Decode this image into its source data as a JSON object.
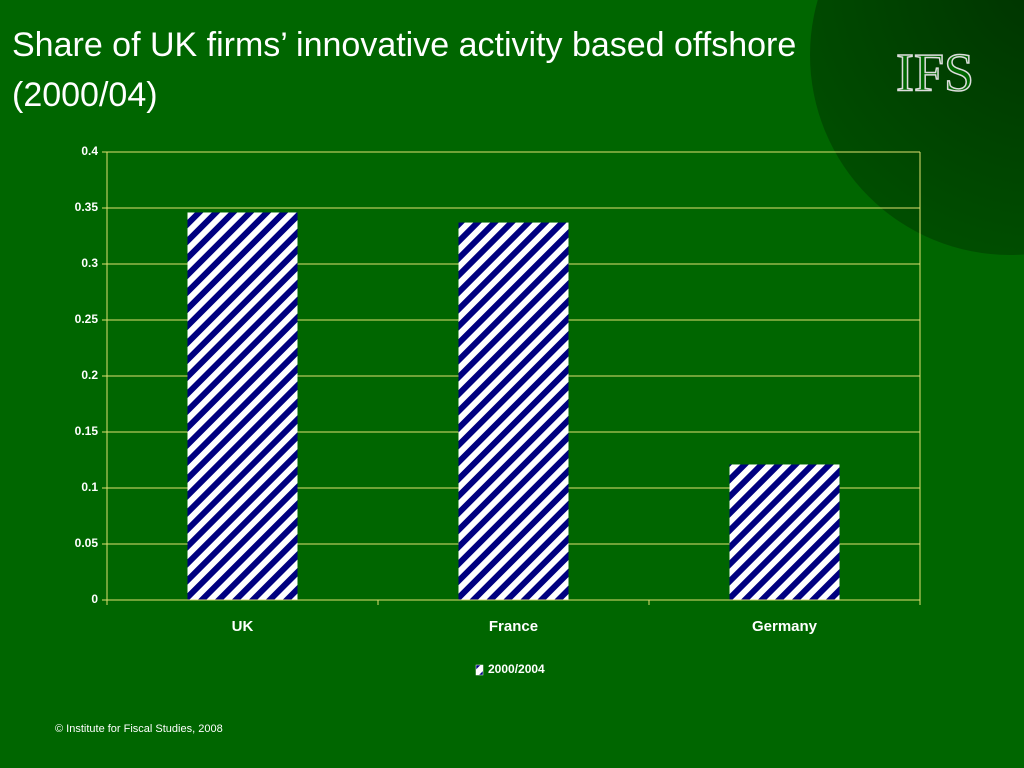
{
  "chart_data": {
    "type": "bar",
    "title": "Share of UK firms’ innovative activity based offshore (2000/04)",
    "logo": "IFS",
    "footer": "© Institute for Fiscal Studies, 2008",
    "categories": [
      "UK",
      "France",
      "Germany"
    ],
    "series": [
      {
        "name": "2000/2004",
        "color": "#000080",
        "values": [
          0.346,
          0.337,
          0.121
        ]
      }
    ],
    "ylim": [
      0,
      0.4
    ],
    "yticks": [
      0,
      0.05,
      0.1,
      0.15,
      0.2,
      0.25,
      0.3,
      0.35,
      0.4
    ],
    "grid": true,
    "legend": "bottom"
  }
}
